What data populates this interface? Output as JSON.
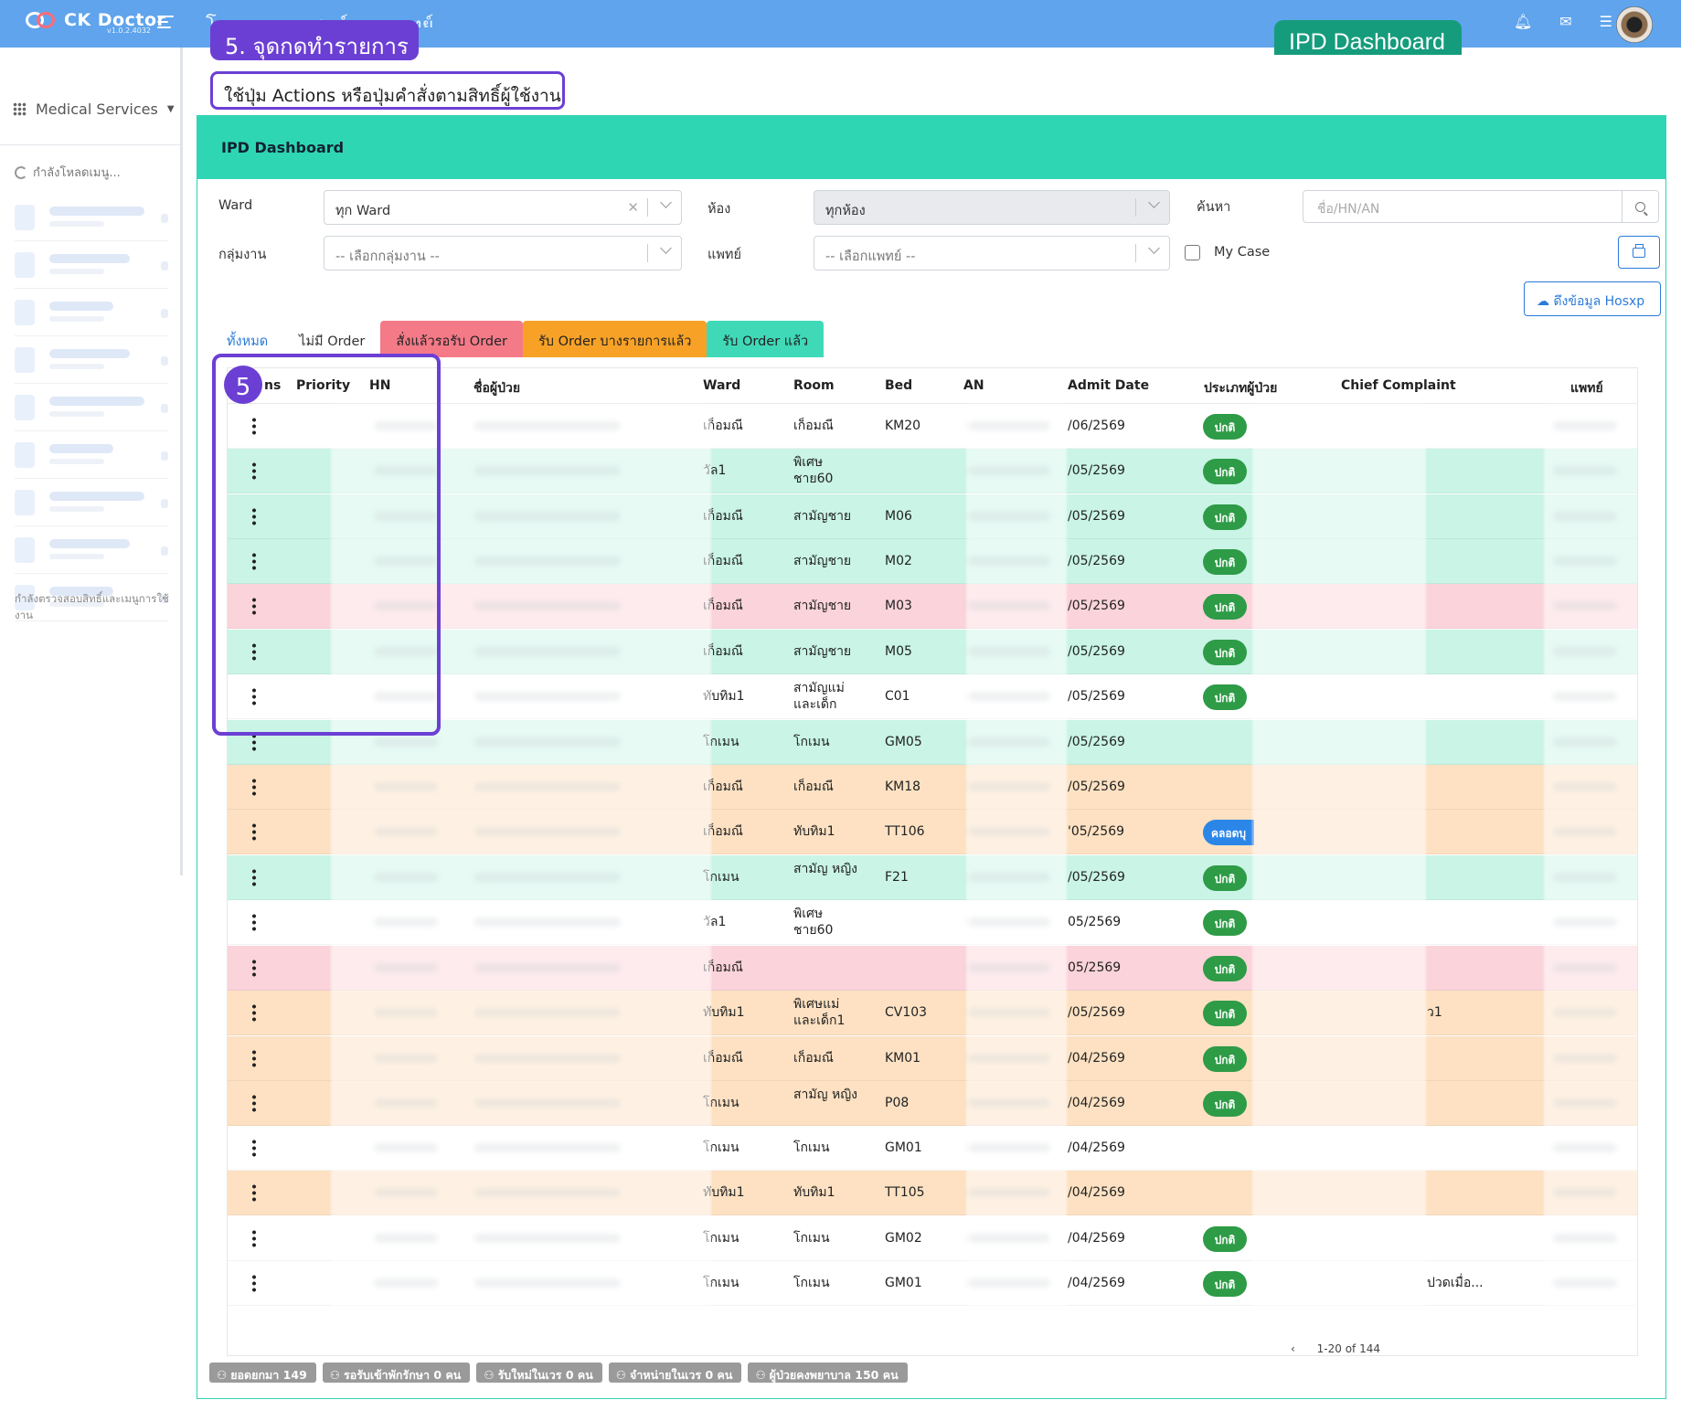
{
  "app": {
    "name": "CK Doctor",
    "version": "v1.0.2.4032",
    "hospital": "โรงพยาบาลศูนย์การแพทย์"
  },
  "sidebar": {
    "service_label": "Medical Services",
    "loading_text": "กำลังโหลดเมนู...",
    "permission_text": "กำลังตรวจสอบสิทธิ์และเมนูการใช้งาน"
  },
  "annotations": {
    "ipd_badge": "IPD Dashboard",
    "step_title": "5. จุดกดทำรายการ",
    "step_hint": "ใช้ปุ่ม Actions หรือปุ่มคำสั่งตามสิทธิ์ผู้ใช้งาน",
    "step_number": "5"
  },
  "card": {
    "title": "IPD Dashboard"
  },
  "filters": {
    "ward_label": "Ward",
    "ward_value": "ทุก Ward",
    "room_label": "ห้อง",
    "room_value": "ทุกห้อง",
    "search_label": "ค้นหา",
    "search_placeholder": "ชื่อ/HN/AN",
    "group_label": "กลุ่มงาน",
    "group_placeholder": "-- เลือกกลุ่มงาน --",
    "doctor_label": "แพทย์",
    "doctor_placeholder": "-- เลือกแพทย์ --",
    "mycase_label": "My Case",
    "hosxp_label": "ดึงข้อมูล Hosxp"
  },
  "tabs": [
    {
      "label": "ทั้งหมด"
    },
    {
      "label": "ไม่มี Order"
    },
    {
      "label": "สั่งแล้วรอรับ Order"
    },
    {
      "label": "รับ Order บางรายการแล้ว"
    },
    {
      "label": "รับ Order แล้ว"
    }
  ],
  "table": {
    "headers": {
      "actions": "ns",
      "priority": "Priority",
      "hn": "HN",
      "name": "ชื่อผู้ป่วย",
      "ward": "Ward",
      "room": "Room",
      "bed": "Bed",
      "an": "AN",
      "admit": "Admit Date",
      "ptype": "ประเภทผู้ป่วย",
      "cc": "Chief Complaint",
      "doctor": "แพทย์"
    },
    "rows": [
      {
        "color": "white",
        "ward": "เก็อมณี",
        "room": "เก็อมณี",
        "bed": "KM20",
        "admit": "/06/2569",
        "ptype": "ปกติ",
        "cc": ""
      },
      {
        "color": "green",
        "ward": "วัล1",
        "room": "พิเศษ ชาย60",
        "bed": "",
        "admit": "/05/2569",
        "ptype": "ปกติ",
        "cc": ""
      },
      {
        "color": "green",
        "ward": "เก็อมณี",
        "room": "สามัญชาย",
        "bed": "M06",
        "admit": "/05/2569",
        "ptype": "ปกติ",
        "cc": ""
      },
      {
        "color": "green",
        "ward": "เก็อมณี",
        "room": "สามัญชาย",
        "bed": "M02",
        "admit": "/05/2569",
        "ptype": "ปกติ",
        "cc": ""
      },
      {
        "color": "pink",
        "ward": "เก็อมณี",
        "room": "สามัญชาย",
        "bed": "M03",
        "admit": "/05/2569",
        "ptype": "ปกติ",
        "cc": ""
      },
      {
        "color": "green",
        "ward": "เก็อมณี",
        "room": "สามัญชาย",
        "bed": "M05",
        "admit": "/05/2569",
        "ptype": "ปกติ",
        "cc": ""
      },
      {
        "color": "white",
        "ward": "ทับทิม1",
        "room": "สามัญแม่ และเด็ก",
        "bed": "C01",
        "admit": "/05/2569",
        "ptype": "ปกติ",
        "cc": ""
      },
      {
        "color": "green",
        "ward": "โกเมน",
        "room": "โกเมน",
        "bed": "GM05",
        "admit": "/05/2569",
        "ptype": "",
        "cc": ""
      },
      {
        "color": "peach",
        "ward": "เก็อมณี",
        "room": "เก็อมณี",
        "bed": "KM18",
        "admit": "/05/2569",
        "ptype": "",
        "cc": ""
      },
      {
        "color": "peach",
        "ward": "เก็อมณี",
        "room": "ทับทิม1",
        "bed": "TT106",
        "admit": "'05/2569",
        "ptype": "คลอดบุ",
        "cc": ""
      },
      {
        "color": "green",
        "ward": "โกเมน",
        "room": "สามัญ หญิง",
        "bed": "F21",
        "admit": "/05/2569",
        "ptype": "ปกติ",
        "cc": ""
      },
      {
        "color": "white",
        "ward": "วัล1",
        "room": "พิเศษ ชาย60",
        "bed": "",
        "admit": "05/2569",
        "ptype": "ปกติ",
        "cc": ""
      },
      {
        "color": "pink",
        "ward": "เก็อมณี",
        "room": "",
        "bed": "",
        "admit": "05/2569",
        "ptype": "ปกติ",
        "cc": ""
      },
      {
        "color": "peach",
        "ward": "ทับทิม1",
        "room": "พิเศษแม่ และเด็ก1",
        "bed": "CV103",
        "admit": "/05/2569",
        "ptype": "ปกติ",
        "cc": "ว1"
      },
      {
        "color": "peach",
        "ward": "เก็อมณี",
        "room": "เก็อมณี",
        "bed": "KM01",
        "admit": "/04/2569",
        "ptype": "ปกติ",
        "cc": ""
      },
      {
        "color": "peach",
        "ward": "โกเมน",
        "room": "สามัญ หญิง",
        "bed": "P08",
        "admit": "/04/2569",
        "ptype": "ปกติ",
        "cc": ""
      },
      {
        "color": "white",
        "ward": "โกเมน",
        "room": "โกเมน",
        "bed": "GM01",
        "admit": "/04/2569",
        "ptype": "",
        "cc": ""
      },
      {
        "color": "peach",
        "ward": "ทับทิม1",
        "room": "ทับทิม1",
        "bed": "TT105",
        "admit": "/04/2569",
        "ptype": "",
        "cc": ""
      },
      {
        "color": "white",
        "ward": "โกเมน",
        "room": "โกเมน",
        "bed": "GM02",
        "admit": "/04/2569",
        "ptype": "ปกติ",
        "cc": ""
      },
      {
        "color": "white",
        "ward": "โกเมน",
        "room": "โกเมน",
        "bed": "GM01",
        "admit": "/04/2569",
        "ptype": "ปกติ",
        "cc": "ปวดเมื่อ..."
      }
    ],
    "pager": "1-20 of 144"
  },
  "footer": [
    {
      "label": "ยอดยกมา 149"
    },
    {
      "label": "รอรับเข้าพักรักษา 0 คน"
    },
    {
      "label": "รับใหม่ในเวร 0 คน"
    },
    {
      "label": "จำหน่ายในเวร 0 คน"
    },
    {
      "label": "ผู้ป่วยคงพยาบาล 150 คน"
    }
  ]
}
